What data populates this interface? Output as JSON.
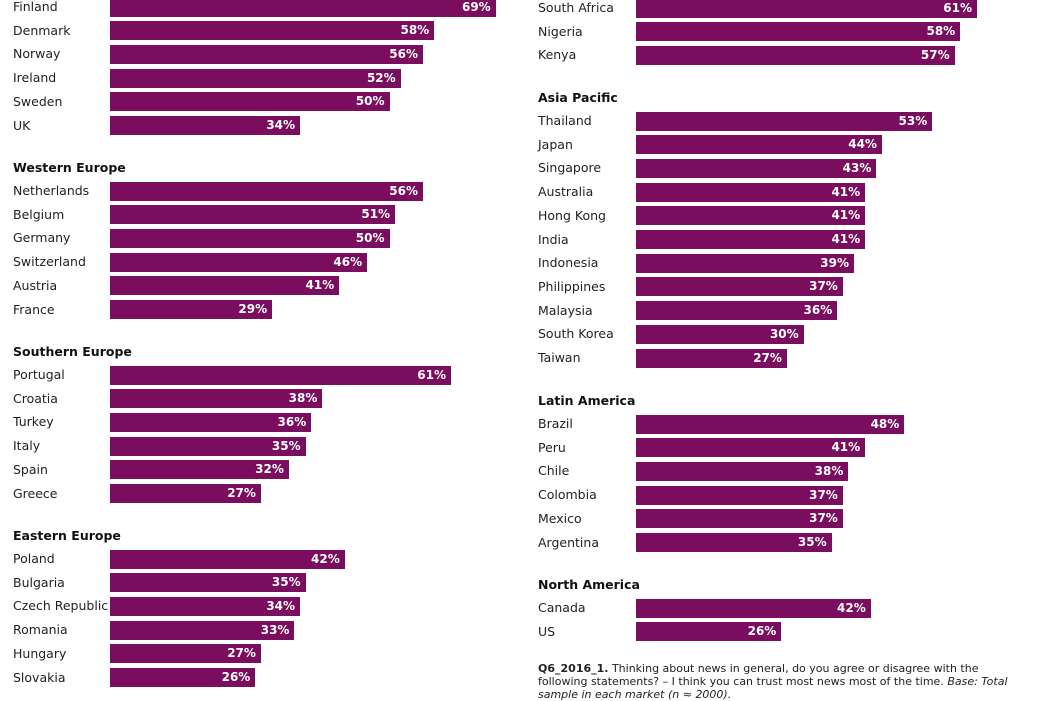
{
  "chart_data": {
    "type": "bar",
    "orientation": "horizontal",
    "bar_color": "#7b0d5e",
    "value_suffix": "%",
    "xlim": [
      0,
      100
    ],
    "groups": [
      {
        "title": "",
        "categories": [
          "Finland",
          "Denmark",
          "Norway",
          "Ireland",
          "Sweden",
          "UK"
        ],
        "values": [
          69,
          58,
          56,
          52,
          50,
          34
        ]
      },
      {
        "title": "Western Europe",
        "categories": [
          "Netherlands",
          "Belgium",
          "Germany",
          "Switzerland",
          "Austria",
          "France"
        ],
        "values": [
          56,
          51,
          50,
          46,
          41,
          29
        ]
      },
      {
        "title": "Southern Europe",
        "categories": [
          "Portugal",
          "Croatia",
          "Turkey",
          "Italy",
          "Spain",
          "Greece"
        ],
        "values": [
          61,
          38,
          36,
          35,
          32,
          27
        ]
      },
      {
        "title": "Eastern Europe",
        "categories": [
          "Poland",
          "Bulgaria",
          "Czech Republic",
          "Romania",
          "Hungary",
          "Slovakia"
        ],
        "values": [
          42,
          35,
          34,
          33,
          27,
          26
        ]
      },
      {
        "title": "",
        "categories": [
          "South Africa",
          "Nigeria",
          "Kenya"
        ],
        "values": [
          61,
          58,
          57
        ]
      },
      {
        "title": "Asia Pacific",
        "categories": [
          "Thailand",
          "Japan",
          "Singapore",
          "Australia",
          "Hong Kong",
          "India",
          "Indonesia",
          "Philippines",
          "Malaysia",
          "South Korea",
          "Taiwan"
        ],
        "values": [
          53,
          44,
          43,
          41,
          41,
          41,
          39,
          37,
          36,
          30,
          27
        ]
      },
      {
        "title": "Latin America",
        "categories": [
          "Brazil",
          "Peru",
          "Chile",
          "Colombia",
          "Mexico",
          "Argentina"
        ],
        "values": [
          48,
          41,
          38,
          37,
          37,
          35
        ]
      },
      {
        "title": "North America",
        "categories": [
          "Canada",
          "US"
        ],
        "values": [
          42,
          26
        ]
      }
    ]
  },
  "footnote": {
    "code": "Q6_2016_1.",
    "text": " Thinking about news in general, do you agree or disagree with the following statements? – I think you can trust most news most of the time. ",
    "base_label": "Base:",
    "base_text": " Total sample in each market (n ≈ 2000)."
  }
}
